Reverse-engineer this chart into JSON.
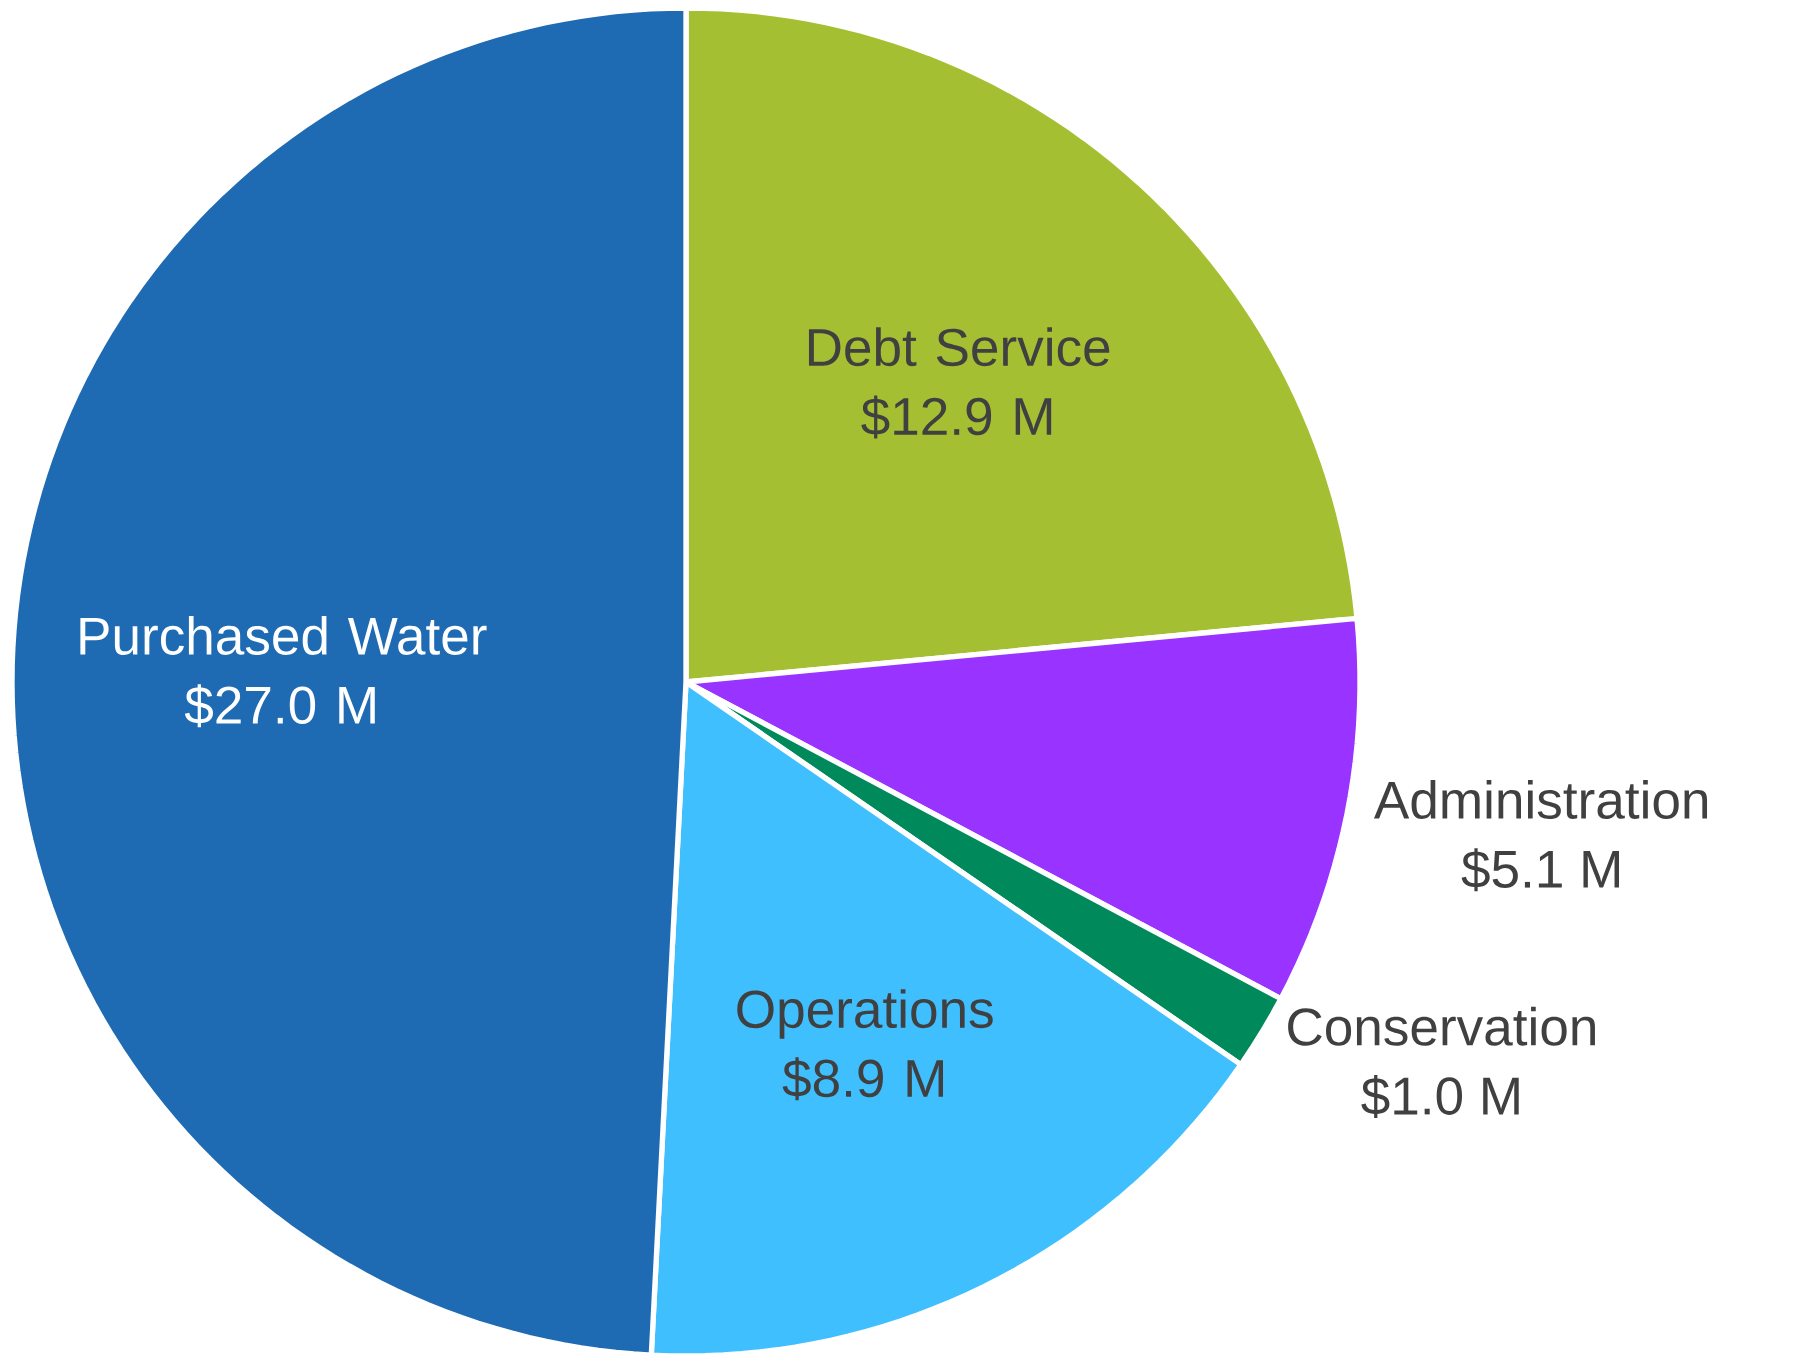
{
  "chart_data": {
    "type": "pie",
    "categories": [
      "Debt Service",
      "Administration",
      "Conservation",
      "Operations",
      "Purchased Water"
    ],
    "values": [
      12.9,
      5.1,
      1.0,
      8.9,
      27.0
    ],
    "colors": [
      "#a4c032",
      "#9933ff",
      "#00895a",
      "#40bfff",
      "#1e6bb4"
    ],
    "value_labels": [
      "$12.9 M",
      "$5.1 M",
      "$1.0 M",
      "$8.9 M",
      "$27.0 M"
    ]
  }
}
